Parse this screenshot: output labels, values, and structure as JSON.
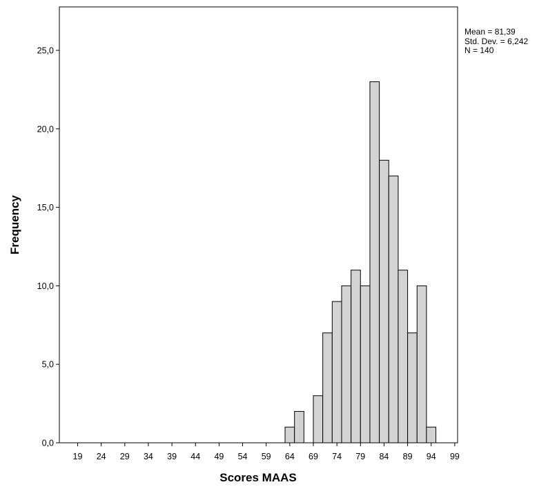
{
  "chart_data": {
    "type": "bar",
    "xlabel": "Scores MAAS",
    "ylabel": "Frequency",
    "ylim": [
      0,
      28
    ],
    "x_ticks": [
      "19",
      "24",
      "29",
      "34",
      "39",
      "44",
      "49",
      "54",
      "59",
      "64",
      "69",
      "74",
      "79",
      "84",
      "89",
      "94",
      "99"
    ],
    "x_tick_values": [
      19,
      24,
      29,
      34,
      39,
      44,
      49,
      54,
      59,
      64,
      69,
      74,
      79,
      84,
      89,
      94,
      99
    ],
    "y_ticks": [
      {
        "value": 0,
        "label": "0,0"
      },
      {
        "value": 5,
        "label": "5,0"
      },
      {
        "value": 10,
        "label": "10,0"
      },
      {
        "value": 15,
        "label": "15,0"
      },
      {
        "value": 20,
        "label": "20,0"
      },
      {
        "value": 25,
        "label": "25,0"
      }
    ],
    "bin_width": 2,
    "bins": [
      {
        "x": 64,
        "count": 1
      },
      {
        "x": 66,
        "count": 2
      },
      {
        "x": 70,
        "count": 3
      },
      {
        "x": 72,
        "count": 7
      },
      {
        "x": 74,
        "count": 9
      },
      {
        "x": 76,
        "count": 10
      },
      {
        "x": 78,
        "count": 11
      },
      {
        "x": 80,
        "count": 10
      },
      {
        "x": 82,
        "count": 23
      },
      {
        "x": 84,
        "count": 18
      },
      {
        "x": 86,
        "count": 17
      },
      {
        "x": 88,
        "count": 11
      },
      {
        "x": 90,
        "count": 7
      },
      {
        "x": 92,
        "count": 10
      },
      {
        "x": 94,
        "count": 1
      }
    ],
    "bar_color": "#d3d3d3",
    "bar_stroke": "#000000",
    "grid": false,
    "stats": {
      "mean": "Mean = 81,39",
      "std": "Std. Dev. = 6,242",
      "n": "N = 140"
    }
  }
}
